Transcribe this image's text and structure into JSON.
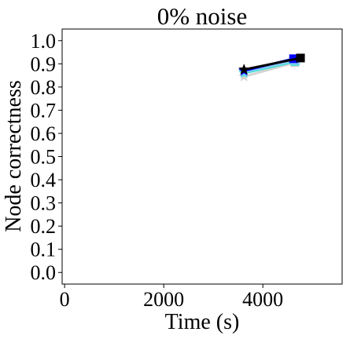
{
  "chart_data": {
    "type": "line",
    "title": "0% noise",
    "xlabel": "Time (s)",
    "ylabel": "Node correctness",
    "xlim": [
      -50,
      5600
    ],
    "ylim": [
      -0.05,
      1.05
    ],
    "xticks": [
      0,
      2000,
      4000
    ],
    "xtick_labels": [
      "0",
      "2000",
      "4000"
    ],
    "yticks": [
      0.0,
      0.1,
      0.2,
      0.3,
      0.4,
      0.5,
      0.6,
      0.7,
      0.8,
      0.9,
      1.0
    ],
    "ytick_labels": [
      "0.0",
      "0.1",
      "0.2",
      "0.3",
      "0.4",
      "0.5",
      "0.6",
      "0.7",
      "0.8",
      "0.9",
      "1.0"
    ],
    "grid": false,
    "legend": "none",
    "series": [
      {
        "color": "#d3d3d3",
        "start_marker": "star",
        "end_marker": "square",
        "x": [
          3620,
          4640
        ],
        "y": [
          0.845,
          0.905
        ]
      },
      {
        "color": "#40e0d0",
        "start_marker": "star",
        "end_marker": "square",
        "x": [
          3620,
          4650
        ],
        "y": [
          0.86,
          0.91
        ]
      },
      {
        "color": "#87cefa",
        "start_marker": "star",
        "end_marker": "square",
        "x": [
          3620,
          4660
        ],
        "y": [
          0.865,
          0.915
        ]
      },
      {
        "color": "#0000ff",
        "start_marker": "star",
        "end_marker": "square",
        "x": [
          3620,
          4620
        ],
        "y": [
          0.87,
          0.922
        ]
      },
      {
        "color": "#000000",
        "start_marker": "star",
        "end_marker": "square",
        "x": [
          3620,
          4760
        ],
        "y": [
          0.875,
          0.925
        ]
      }
    ]
  }
}
